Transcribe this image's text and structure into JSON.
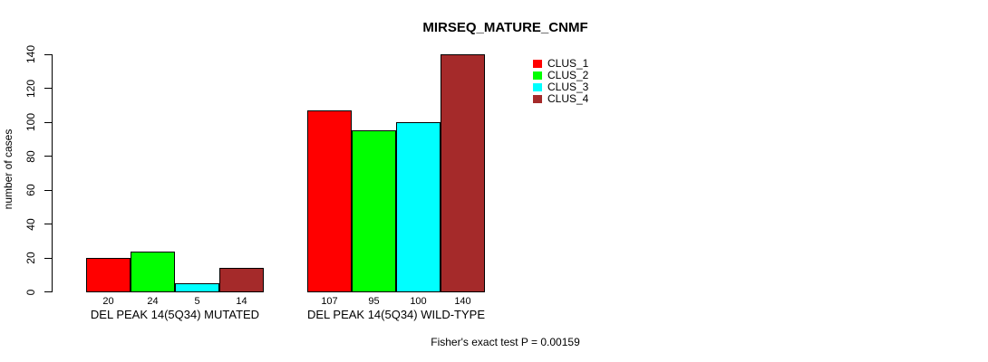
{
  "chart_data": {
    "type": "bar",
    "title": "MIRSEQ_MATURE_CNMF",
    "ylabel": "number of cases",
    "xlabel": "",
    "categories": [
      "DEL PEAK 14(5Q34) MUTATED",
      "DEL PEAK 14(5Q34) WILD-TYPE"
    ],
    "series": [
      {
        "name": "CLUS_1",
        "color": "#FF0000",
        "values": [
          20,
          107
        ]
      },
      {
        "name": "CLUS_2",
        "color": "#00FF00",
        "values": [
          24,
          95
        ]
      },
      {
        "name": "CLUS_3",
        "color": "#00FFFF",
        "values": [
          5,
          100
        ]
      },
      {
        "name": "CLUS_4",
        "color": "#A52A2A",
        "values": [
          14,
          140
        ]
      }
    ],
    "bar_value_labels": true,
    "ylim": [
      0,
      140
    ],
    "yticks": [
      0,
      20,
      40,
      60,
      80,
      100,
      120,
      140
    ],
    "grid": false,
    "legend_position": "top-right-inside",
    "annotation": "Fisher's exact test P = 0.00159",
    "background": "#ffffff",
    "bar_border_color": "#000000"
  }
}
